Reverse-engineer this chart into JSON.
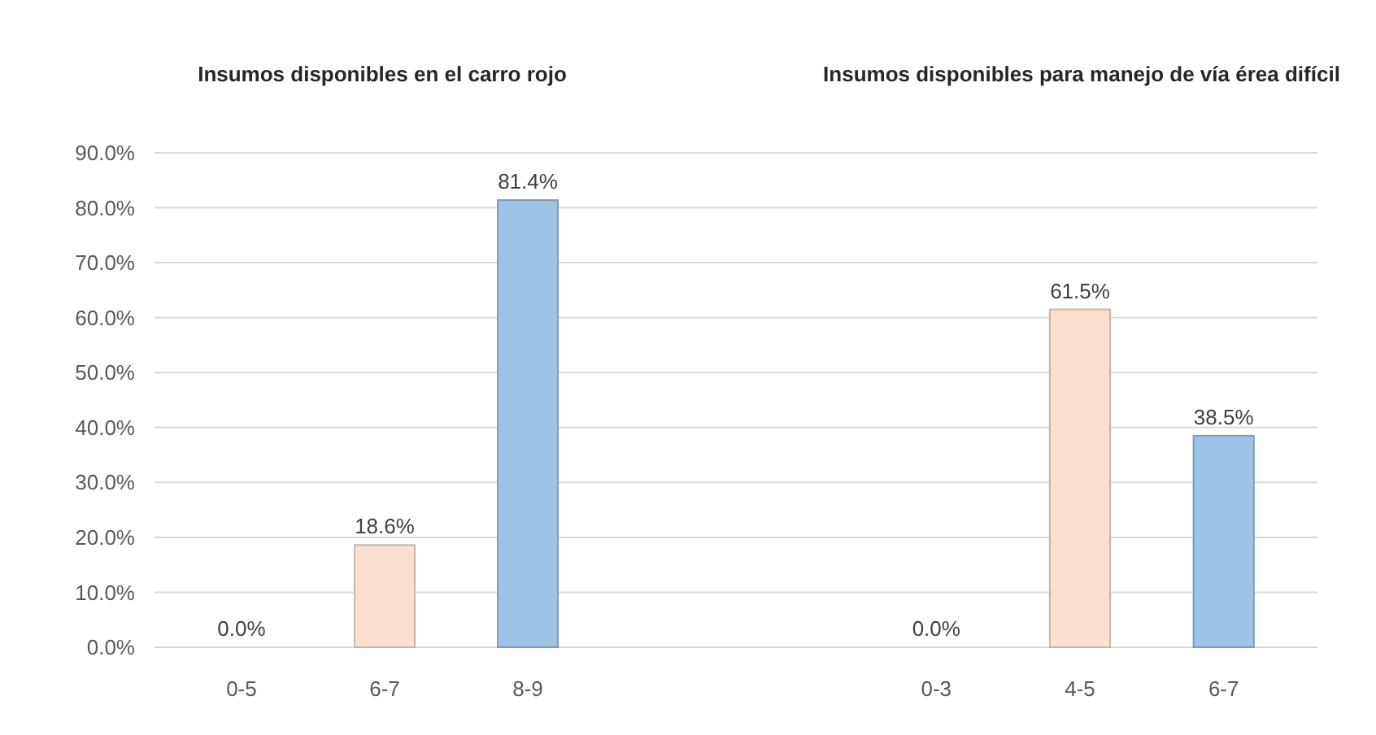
{
  "chart_data": [
    {
      "type": "bar",
      "title": "Insumos disponibles en el carro rojo",
      "categories": [
        "0-5",
        "6-7",
        "8-9"
      ],
      "values": [
        0.0,
        18.6,
        81.4
      ],
      "colors": [
        "#1f2d4a",
        "#fbe0d0",
        "#9dc3e6"
      ],
      "value_labels": [
        "0.0%",
        "18.6%",
        "81.4%"
      ],
      "ylim": [
        0,
        90
      ],
      "yticks": [
        {
          "value": 0,
          "label": "0.0%"
        },
        {
          "value": 10,
          "label": "10.0%"
        },
        {
          "value": 20,
          "label": "20.0%"
        },
        {
          "value": 30,
          "label": "30.0%"
        },
        {
          "value": 40,
          "label": "40.0%"
        },
        {
          "value": 50,
          "label": "50.0%"
        },
        {
          "value": 60,
          "label": "60.0%"
        },
        {
          "value": 70,
          "label": "70.0%"
        },
        {
          "value": 80,
          "label": "80.0%"
        },
        {
          "value": 90,
          "label": "90.0%"
        }
      ],
      "grid": "y"
    },
    {
      "type": "bar",
      "title": "Insumos disponibles para manejo de vía érea difícil",
      "categories": [
        "0-3",
        "4-5",
        "6-7"
      ],
      "values": [
        0.0,
        61.5,
        38.5
      ],
      "colors": [
        "#1f2d4a",
        "#fbe0d0",
        "#9dc3e6"
      ],
      "value_labels": [
        "0.0%",
        "61.5%",
        "38.5%"
      ],
      "ylim": [
        0,
        90
      ],
      "yticks": [
        {
          "value": 0,
          "label": null
        },
        {
          "value": 10,
          "label": null
        },
        {
          "value": 20,
          "label": null
        },
        {
          "value": 30,
          "label": null
        },
        {
          "value": 40,
          "label": null
        },
        {
          "value": 50,
          "label": null
        },
        {
          "value": 60,
          "label": null
        },
        {
          "value": 70,
          "label": null
        },
        {
          "value": 80,
          "label": null
        },
        {
          "value": 90,
          "label": null
        }
      ],
      "grid": "y",
      "tick_labels": "x"
    }
  ]
}
